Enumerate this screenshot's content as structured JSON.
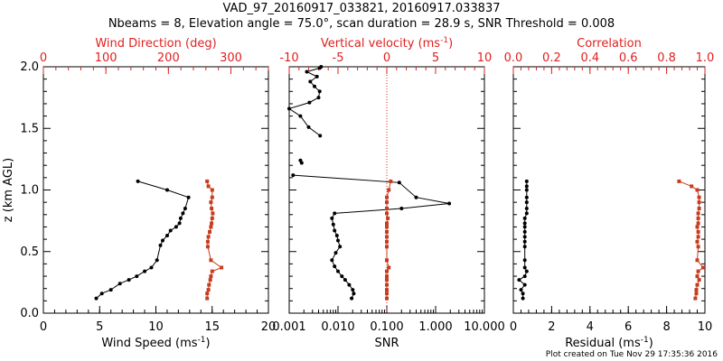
{
  "header": {
    "line1": "VAD_97_20160917_033821, 20160917.033837",
    "line2": "Nbeams = 8, Elevation angle = 75.0°, scan duration = 28.9 s, SNR Threshold = 0.008"
  },
  "footer": {
    "credit": "Plot created on Tue Nov 29 17:35:36 2016"
  },
  "colors": {
    "black": "#000000",
    "red": "#c83c1e",
    "axis_red": "#e02020"
  },
  "chart_data": [
    {
      "type": "line",
      "ylabel": "z (km AGL)",
      "ylim": [
        0,
        2
      ],
      "yticks": [
        "0.0",
        "0.5",
        "1.0",
        "1.5",
        "2.0"
      ],
      "bottom_axis": {
        "label_main": "Wind Speed (ms",
        "label_sup": "-1",
        "label_end": ")",
        "lim": [
          0,
          20
        ],
        "ticks": [
          "0",
          "5",
          "10",
          "15",
          "20"
        ]
      },
      "top_axis": {
        "label": "Wind Direction (deg)",
        "lim": [
          0,
          360
        ],
        "ticks": [
          "0",
          "100",
          "200",
          "300"
        ]
      },
      "series": [
        {
          "axis": "bottom",
          "x": [
            4.7,
            5.2,
            6.0,
            6.8,
            7.6,
            8.3,
            9.0,
            9.6,
            10.1,
            10.4,
            10.6,
            11.0,
            11.3,
            11.8,
            12.1,
            12.2,
            12.4,
            12.6,
            12.9,
            11.0,
            8.4
          ],
          "y": [
            0.12,
            0.16,
            0.19,
            0.24,
            0.27,
            0.3,
            0.34,
            0.37,
            0.43,
            0.55,
            0.59,
            0.63,
            0.67,
            0.7,
            0.73,
            0.77,
            0.81,
            0.85,
            0.94,
            1.0,
            1.07
          ]
        },
        {
          "axis": "top",
          "x": [
            262,
            262,
            264,
            265,
            267,
            268,
            270,
            285,
            268,
            263,
            263,
            264,
            266,
            268,
            269,
            270,
            271,
            269,
            268,
            270,
            270,
            264,
            262
          ],
          "y": [
            0.12,
            0.16,
            0.19,
            0.23,
            0.27,
            0.3,
            0.34,
            0.37,
            0.43,
            0.54,
            0.58,
            0.62,
            0.66,
            0.7,
            0.73,
            0.77,
            0.81,
            0.85,
            0.9,
            0.94,
            1.0,
            1.03,
            1.07
          ]
        }
      ]
    },
    {
      "type": "line",
      "bottom_axis": {
        "label": "SNR",
        "scale": "log",
        "lim": [
          0.001,
          10
        ],
        "ticks": [
          "0.001",
          "0.010",
          "0.100",
          "1.000",
          "10.000"
        ]
      },
      "top_axis": {
        "label_main": "Vertical velocity (ms",
        "label_sup": "-1",
        "label_end": ")",
        "lim": [
          -10,
          10
        ],
        "ticks": [
          "-10",
          "-5",
          "0",
          "5",
          "10"
        ]
      },
      "reference_line": {
        "axis": "top",
        "x": 0,
        "style": "dotted"
      },
      "series": [
        {
          "axis": "bottom",
          "x": [
            0.019,
            0.021,
            0.02,
            0.017,
            0.014,
            0.012,
            0.01,
            0.0085,
            0.0075,
            0.009,
            0.011,
            0.01,
            0.0095,
            0.0085,
            0.008,
            0.0075,
            0.0085,
            0.2,
            1.9,
            0.4,
            0.18,
            0.0012
          ],
          "y": [
            0.12,
            0.16,
            0.19,
            0.23,
            0.27,
            0.3,
            0.34,
            0.38,
            0.43,
            0.49,
            0.54,
            0.59,
            0.63,
            0.67,
            0.72,
            0.77,
            0.81,
            0.85,
            0.89,
            0.94,
            1.06,
            1.12
          ]
        },
        {
          "axis": "bottom",
          "x": [
            0.0018,
            0.0017
          ],
          "y": [
            1.22,
            1.24
          ]
        },
        {
          "axis": "bottom",
          "x": [
            0.0043,
            0.0025,
            0.0017,
            0.001,
            0.0026,
            0.004,
            0.0042,
            0.0033,
            0.0027,
            0.0037,
            0.0023,
            0.0042,
            0.0045
          ],
          "y": [
            1.44,
            1.51,
            1.6,
            1.66,
            1.71,
            1.75,
            1.8,
            1.84,
            1.88,
            1.92,
            1.96,
            1.99,
            2.0
          ]
        },
        {
          "axis": "top",
          "x": [
            0,
            0,
            0,
            0,
            0,
            0,
            0,
            0.2,
            0,
            0,
            0,
            0,
            0,
            0,
            0,
            0.1,
            0,
            0,
            0,
            0,
            0.2,
            0.4
          ],
          "y": [
            0.12,
            0.16,
            0.19,
            0.23,
            0.27,
            0.3,
            0.34,
            0.37,
            0.43,
            0.54,
            0.58,
            0.62,
            0.66,
            0.7,
            0.73,
            0.77,
            0.81,
            0.85,
            0.9,
            0.94,
            1.0,
            1.07
          ]
        }
      ]
    },
    {
      "type": "line",
      "bottom_axis": {
        "label_main": "Residual (ms",
        "label_sup": "-1",
        "label_end": ")",
        "lim": [
          0,
          10
        ],
        "ticks": [
          "0",
          "2",
          "4",
          "6",
          "8",
          "10"
        ]
      },
      "top_axis": {
        "label": "Correlation",
        "lim": [
          0,
          1
        ],
        "ticks": [
          "0.0",
          "0.2",
          "0.4",
          "0.6",
          "0.8",
          "1.0"
        ]
      },
      "series": [
        {
          "axis": "bottom",
          "x": [
            0.5,
            0.5,
            0.4,
            0.6,
            0.3,
            0.6,
            0.7,
            0.6,
            0.6,
            0.6,
            0.6,
            0.6,
            0.6,
            0.6,
            0.6,
            0.6,
            0.7,
            0.7,
            0.7,
            0.7,
            0.7,
            0.7,
            0.7
          ],
          "y": [
            0.12,
            0.16,
            0.19,
            0.23,
            0.27,
            0.3,
            0.34,
            0.37,
            0.43,
            0.54,
            0.58,
            0.62,
            0.66,
            0.7,
            0.73,
            0.77,
            0.81,
            0.85,
            0.9,
            0.94,
            1.0,
            1.03,
            1.07
          ]
        },
        {
          "axis": "top",
          "x": [
            0.95,
            0.955,
            0.955,
            0.96,
            0.97,
            0.96,
            0.965,
            0.99,
            0.96,
            0.965,
            0.96,
            0.965,
            0.965,
            0.96,
            0.965,
            0.965,
            0.965,
            0.97,
            0.97,
            0.97,
            0.96,
            0.93,
            0.865
          ],
          "y": [
            0.12,
            0.16,
            0.19,
            0.23,
            0.27,
            0.3,
            0.34,
            0.37,
            0.43,
            0.54,
            0.58,
            0.62,
            0.66,
            0.7,
            0.73,
            0.77,
            0.81,
            0.85,
            0.9,
            0.94,
            1.0,
            1.03,
            1.07
          ]
        }
      ]
    }
  ]
}
